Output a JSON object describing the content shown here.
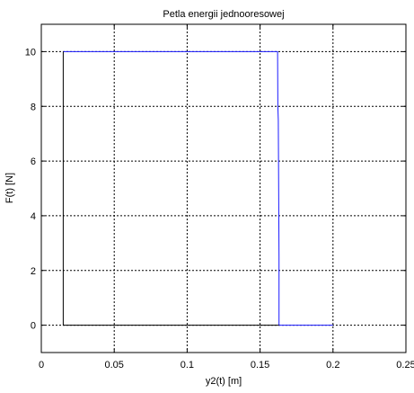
{
  "chart_data": {
    "type": "line",
    "title": "Petla energii jednooresowej",
    "xlabel": "y2(t) [m]",
    "ylabel": "F(t) [N]",
    "xlim": [
      0,
      0.25
    ],
    "ylim": [
      -1,
      11
    ],
    "grid": true,
    "x_ticks": [
      0,
      0.05,
      0.1,
      0.15,
      0.2,
      0.25
    ],
    "x_tick_labels": [
      "0",
      "0.05",
      "0.1",
      "0.15",
      "0.2",
      "0.25"
    ],
    "y_ticks": [
      0,
      2,
      4,
      6,
      8,
      10
    ],
    "y_tick_labels": [
      "0",
      "2",
      "4",
      "6",
      "8",
      "10"
    ],
    "series": [
      {
        "color": "#1a1aff",
        "x": [
          0.015,
          0.162,
          0.1622,
          0.1625,
          0.163,
          0.163,
          0.2
        ],
        "y": [
          10,
          10,
          8,
          7.5,
          2.5,
          0,
          0
        ]
      },
      {
        "color": "#000000",
        "x": [
          0.163,
          0.015,
          0.015
        ],
        "y": [
          0,
          0,
          10
        ]
      }
    ]
  }
}
